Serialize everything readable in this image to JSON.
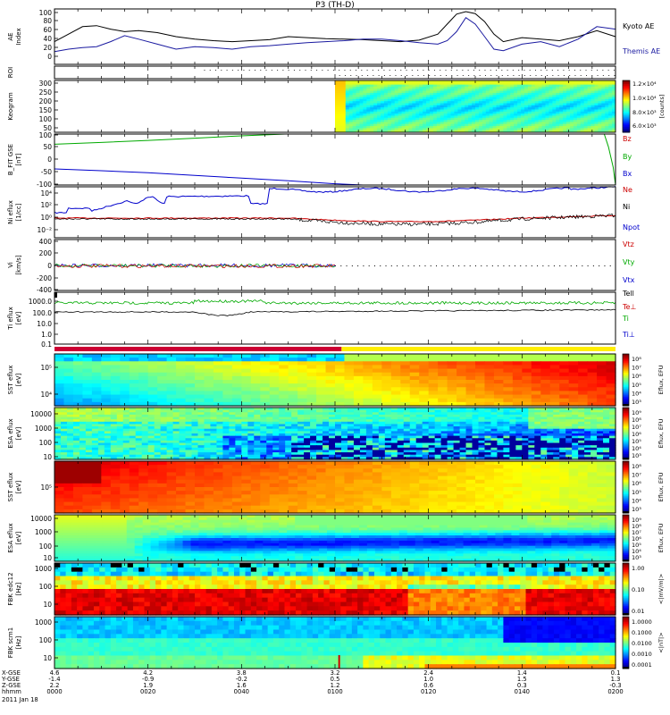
{
  "chart_data": {
    "type": "multi-panel",
    "title": "P3 (TH-D)",
    "date": "2011 Jan 18",
    "x_axis": {
      "row_labels": [
        "X-GSE",
        "Y-GSE",
        "Z-GSE",
        "hhmm"
      ],
      "ticks": [
        {
          "time": "0000",
          "x_gse": "4.6",
          "y_gse": "-1.4",
          "z_gse": "2.2"
        },
        {
          "time": "0020",
          "x_gse": "4.2",
          "y_gse": "-0.9",
          "z_gse": "1.9"
        },
        {
          "time": "0040",
          "x_gse": "3.8",
          "y_gse": "-0.2",
          "z_gse": "1.6"
        },
        {
          "time": "0100",
          "x_gse": "3.2",
          "y_gse": "0.5",
          "z_gse": "1.2"
        },
        {
          "time": "0120",
          "x_gse": "2.4",
          "y_gse": "1.0",
          "z_gse": "0.6"
        },
        {
          "time": "0140",
          "x_gse": "1.4",
          "y_gse": "1.5",
          "z_gse": "0.3"
        },
        {
          "time": "0200",
          "x_gse": "0.1",
          "y_gse": "1.3",
          "z_gse": "-0.3"
        }
      ]
    },
    "panels": [
      {
        "ylabel": "AE Index",
        "yticks": [
          "100",
          "80",
          "60",
          "40",
          "20",
          "0"
        ],
        "ylim": [
          0,
          100
        ],
        "series": [
          {
            "name": "Kyoto AE",
            "color": "#000000",
            "t": [
              0,
              3,
              6,
              9,
              12,
              15,
              18,
              22,
              26,
              30,
              34,
              38,
              42,
              46,
              50,
              54,
              58,
              62,
              66,
              70,
              74,
              78,
              82,
              84,
              86,
              88,
              90,
              92,
              94,
              96,
              100,
              104,
              108,
              112,
              116,
              120
            ],
            "values": [
              40,
              55,
              70,
              72,
              65,
              60,
              62,
              58,
              50,
              45,
              42,
              40,
              42,
              44,
              50,
              48,
              46,
              45,
              44,
              42,
              40,
              43,
              55,
              75,
              95,
              100,
              96,
              80,
              55,
              40,
              48,
              45,
              42,
              50,
              62,
              50
            ]
          },
          {
            "name": "Themis AE",
            "color": "#1a1aa0",
            "t": [
              0,
              3,
              6,
              9,
              12,
              15,
              18,
              22,
              26,
              30,
              34,
              38,
              42,
              46,
              50,
              54,
              58,
              62,
              66,
              70,
              74,
              78,
              82,
              84,
              86,
              88,
              90,
              92,
              94,
              96,
              100,
              104,
              108,
              112,
              116,
              120
            ],
            "values": [
              20,
              25,
              28,
              30,
              40,
              52,
              45,
              35,
              25,
              30,
              28,
              25,
              30,
              32,
              35,
              38,
              40,
              42,
              45,
              45,
              42,
              38,
              35,
              42,
              60,
              88,
              75,
              50,
              25,
              22,
              35,
              40,
              30,
              45,
              70,
              65
            ]
          }
        ]
      },
      {
        "ylabel": "ROI",
        "type": "marks"
      },
      {
        "ylabel": "Keogram",
        "units": "[counts]",
        "yticks": [
          "300",
          "250",
          "200",
          "150",
          "100",
          "50"
        ],
        "colorbar": [
          "1.2×10⁴",
          "1.0×10⁴",
          "8.0×10³",
          "6.0×10³"
        ]
      },
      {
        "ylabel": "B_FIT GSE [nT]",
        "yticks": [
          "100",
          "50",
          "0",
          "-50",
          "-100"
        ],
        "ylim": [
          -100,
          100
        ],
        "series": [
          {
            "name": "Bz",
            "color": "#cc0000",
            "t": [],
            "values": []
          },
          {
            "name": "By",
            "color": "#00aa00",
            "t": [
              0,
              10,
              20,
              30,
              40,
              49.3,
              117.6,
              118.5,
              119.5,
              120
            ],
            "values": [
              60,
              67,
              75,
              84,
              93,
              100,
              100,
              50,
              -30,
              -100
            ]
          },
          {
            "name": "Bx",
            "color": "#0000cc",
            "t": [
              0,
              10,
              20,
              30,
              40,
              50,
              60,
              66
            ],
            "values": [
              -37,
              -44,
              -52,
              -62,
              -73,
              -83,
              -95,
              -100
            ]
          }
        ]
      },
      {
        "ylabel": "Ni eflux [1/cc]",
        "yticks": [
          "10⁴",
          "10²",
          "10⁰",
          "10⁻²"
        ],
        "series": [
          {
            "name": "Ne",
            "color": "#cc0000"
          },
          {
            "name": "Ni",
            "color": "#000000"
          },
          {
            "name": "Npot",
            "color": "#0000cc"
          }
        ]
      },
      {
        "ylabel": "Vi [km/s]",
        "yticks": [
          "400",
          "200",
          "0",
          "-200",
          "-400"
        ],
        "ylim": [
          -400,
          400
        ],
        "series": [
          {
            "name": "Vtz",
            "color": "#cc0000"
          },
          {
            "name": "Vty",
            "color": "#00aa00"
          },
          {
            "name": "Vtx",
            "color": "#0000cc"
          }
        ]
      },
      {
        "ylabel": "Ti eflux [eV]",
        "yticks": [
          "1000.0",
          "100.0",
          "10.0",
          "1.0",
          "0.1"
        ],
        "series": [
          {
            "name": "Tell",
            "color": "#000000"
          },
          {
            "name": "Te⊥",
            "color": "#cc0000"
          },
          {
            "name": "Ti",
            "color": "#00aa00"
          },
          {
            "name": "Ti⊥",
            "color": "#0000cc"
          }
        ]
      },
      {
        "ylabel": "SST eflux [eV]",
        "yticks": [
          "10⁵",
          "10⁴"
        ],
        "colorbar_units": "Eflux, EFU",
        "colorbar": [
          "10⁸",
          "10⁷",
          "10⁶",
          "10⁵",
          "10⁴",
          "10³"
        ]
      },
      {
        "ylabel": "ESA eflux [eV]",
        "yticks": [
          "10000",
          "1000",
          "100",
          "10"
        ],
        "colorbar_units": "Eflux, EFU",
        "colorbar": [
          "10⁹",
          "10⁸",
          "10⁷",
          "10⁶",
          "10⁵",
          "10⁴",
          "10³"
        ]
      },
      {
        "ylabel": "SST eflux [eV]",
        "yticks": [
          "10⁵"
        ],
        "colorbar_units": "Eflux, EFU",
        "colorbar": [
          "10⁸",
          "10⁷",
          "10⁶",
          "10⁵",
          "10⁴",
          "10³"
        ]
      },
      {
        "ylabel": "ESA eflux [eV]",
        "yticks": [
          "10000",
          "1000",
          "100",
          "10"
        ],
        "colorbar_units": "Eflux, EFU",
        "colorbar": [
          "10⁹",
          "10⁸",
          "10⁷",
          "10⁶",
          "10⁵",
          "10⁴",
          "10³"
        ]
      },
      {
        "ylabel": "FBK edc12 [Hz]",
        "yticks": [
          "1000",
          "100",
          "10"
        ],
        "colorbar_units": "<|mV/m|>",
        "colorbar": [
          "1.00",
          "0.10",
          "0.01"
        ]
      },
      {
        "ylabel": "FBK scm1 [Hz]",
        "yticks": [
          "1000",
          "100",
          "10"
        ],
        "colorbar_units": "<|nT|>",
        "colorbar": [
          "1.0000",
          "0.1000",
          "0.0100",
          "0.0010",
          "0.0001"
        ]
      }
    ]
  }
}
